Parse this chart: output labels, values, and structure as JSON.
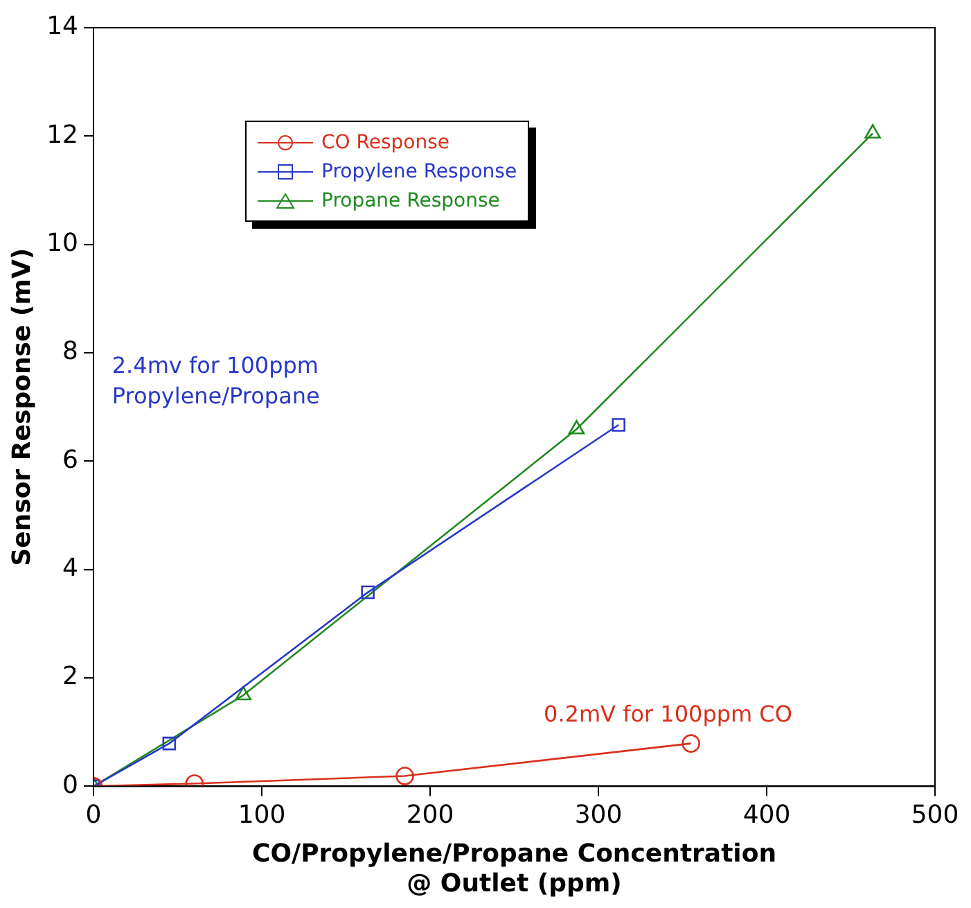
{
  "chart_data": {
    "type": "line",
    "xlabel": "CO/Propylene/Propane Concentration\n@ Outlet (ppm)",
    "ylabel": "Sensor Response (mV)",
    "xlim": [
      0,
      500
    ],
    "xticks": [
      0,
      100,
      200,
      300,
      400,
      500
    ],
    "ylim": [
      0,
      14
    ],
    "yticks": [
      0,
      2,
      4,
      6,
      8,
      10,
      12,
      14
    ],
    "grid": false,
    "legend": "top left",
    "line_style": "solid",
    "series": [
      {
        "name": "CO Response",
        "color": "#d8301c",
        "marker": "circle",
        "x": [
          0,
          60,
          185,
          355
        ],
        "values": [
          0,
          0.05,
          0.19,
          0.79
        ]
      },
      {
        "name": "Propylene Response",
        "color": "#2838c8",
        "marker": "square",
        "x": [
          0,
          45,
          163,
          312
        ],
        "values": [
          0,
          0.79,
          3.58,
          6.67
        ]
      },
      {
        "name": "Propane Response",
        "color": "#208a20",
        "marker": "triangle",
        "x": [
          0,
          89,
          287,
          463
        ],
        "values": [
          0,
          1.68,
          6.59,
          12.05
        ]
      }
    ],
    "annotations": [
      "2.4mv for 100ppm\nPropylene/Propane",
      "0.2mV for 100ppm CO"
    ]
  }
}
